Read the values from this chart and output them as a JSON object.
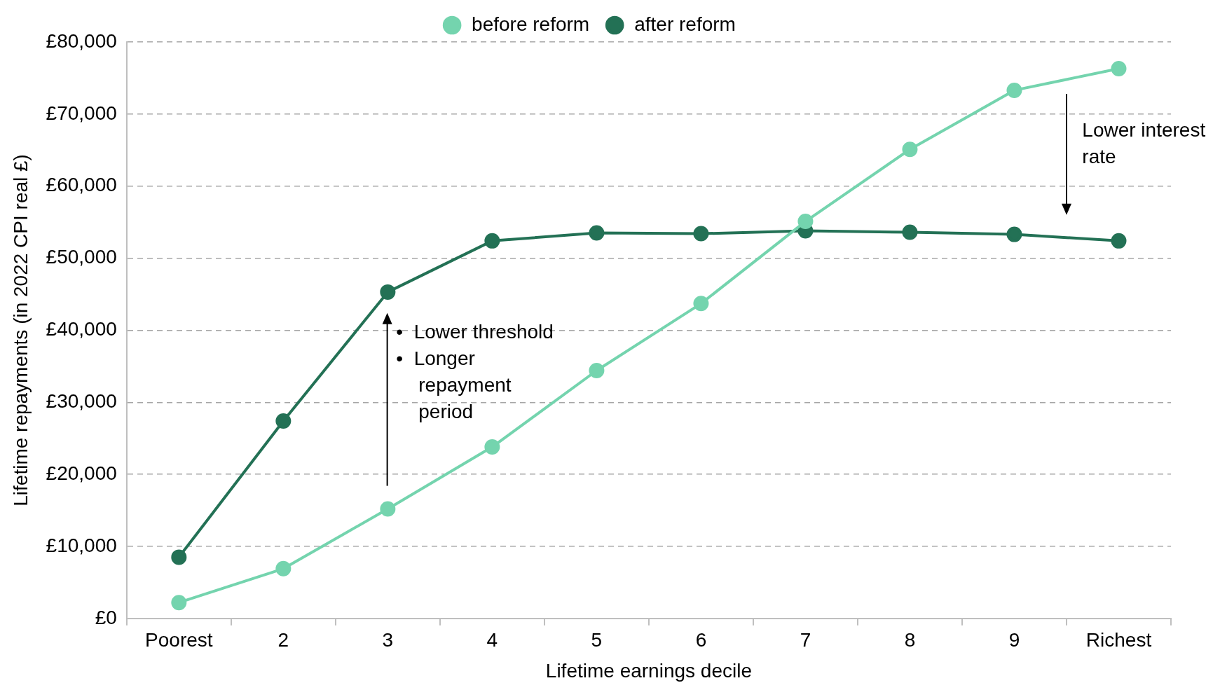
{
  "chart_data": {
    "type": "line",
    "xlabel": "Lifetime earnings decile",
    "ylabel": "Lifetime repayments (in 2022 CPI real £)",
    "categories": [
      "Poorest",
      "2",
      "3",
      "4",
      "5",
      "6",
      "7",
      "8",
      "9",
      "Richest"
    ],
    "series": [
      {
        "name": "before reform",
        "color": "#74d4ae",
        "values": [
          2200,
          6900,
          15200,
          23800,
          34400,
          43700,
          55100,
          65100,
          73300,
          76300
        ]
      },
      {
        "name": "after reform",
        "color": "#237155",
        "values": [
          8500,
          27400,
          45300,
          52400,
          53500,
          53400,
          53800,
          53600,
          53300,
          52400
        ]
      }
    ],
    "ylim": [
      0,
      80000
    ],
    "yticks": [
      {
        "value": 0,
        "label": "£0"
      },
      {
        "value": 10000,
        "label": "£10,000"
      },
      {
        "value": 20000,
        "label": "£20,000"
      },
      {
        "value": 30000,
        "label": "£30,000"
      },
      {
        "value": 40000,
        "label": "£40,000"
      },
      {
        "value": 50000,
        "label": "£50,000"
      },
      {
        "value": 60000,
        "label": "£60,000"
      },
      {
        "value": 70000,
        "label": "£70,000"
      },
      {
        "value": 80000,
        "label": "£80,000"
      }
    ],
    "grid": "y",
    "legend": "top",
    "marker": "circle",
    "line_style": "solid",
    "annotations": [
      "Lower interest rate",
      "•  Lower threshold",
      "•  Longer repayment period"
    ]
  }
}
